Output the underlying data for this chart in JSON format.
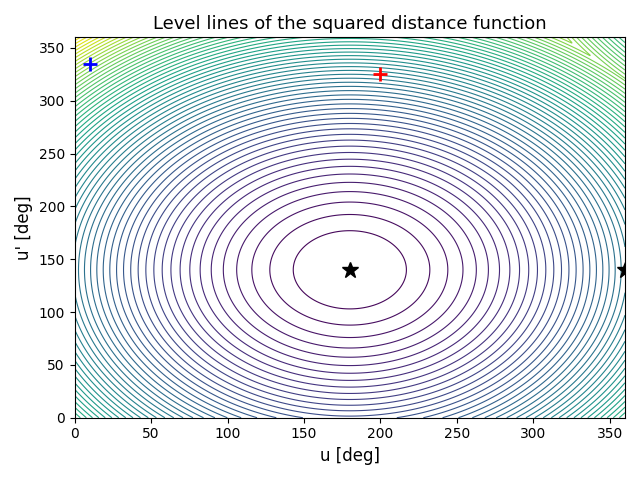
{
  "title": "Level lines of the squared distance function",
  "xlabel": "u [deg]",
  "ylabel": "u' [deg]",
  "u_range": [
    0,
    360
  ],
  "uprime_range": [
    0,
    360
  ],
  "n_points": 600,
  "n_levels": 60,
  "colormap": "viridis",
  "red_plus": [
    200,
    325
  ],
  "blue_plus": [
    10,
    335
  ],
  "star1": [
    180,
    140
  ],
  "star2": [
    360,
    140
  ],
  "u0": 180,
  "u0p": 140,
  "marker_size_plus": 10,
  "marker_size_star": 12,
  "figsize": [
    6.4,
    4.8
  ],
  "dpi": 100
}
